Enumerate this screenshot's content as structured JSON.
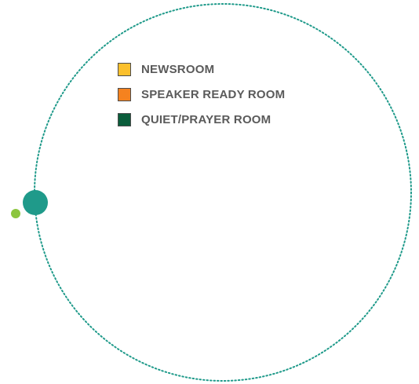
{
  "colors": {
    "ring": "#1f9a8a",
    "large_dot": "#1f9a8a",
    "small_dot": "#8cc63f"
  },
  "legend": {
    "items": [
      {
        "label": "NEWSROOM",
        "color": "#fbc02d"
      },
      {
        "label": "SPEAKER READY ROOM",
        "color": "#f5821f"
      },
      {
        "label": "QUIET/PRAYER ROOM",
        "color": "#0b5d3b"
      }
    ]
  }
}
